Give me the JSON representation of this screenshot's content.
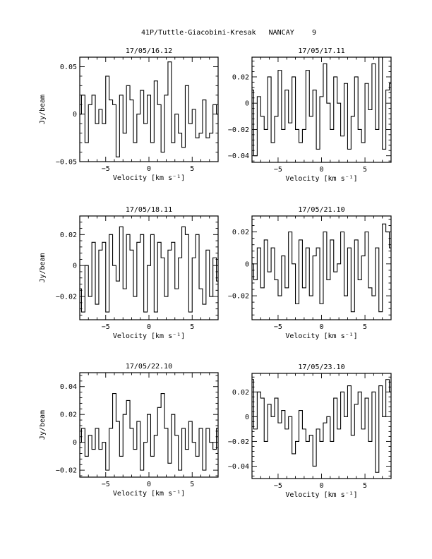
{
  "header": {
    "title": "41P/Tuttle-Giacobini-Kresak   NANCAY",
    "page_number": "9"
  },
  "chart_data": [
    {
      "type": "line",
      "title": "17/05/16.12",
      "xlabel": "Velocity [km s⁻¹]",
      "ylabel": "Jy/beam",
      "xlim": [
        -8,
        8
      ],
      "ylim": [
        -0.05,
        0.06
      ],
      "xticks": [
        -5,
        0,
        5
      ],
      "yticks": [
        -0.05,
        0,
        0.05
      ],
      "yticklabels": [
        "−0.05",
        "0",
        "0.05"
      ],
      "series": [
        {
          "x": [
            -8.0,
            -7.6,
            -7.2,
            -6.8,
            -6.4,
            -6.0,
            -5.6,
            -5.2,
            -4.8,
            -4.4,
            -4.0,
            -3.6,
            -3.2,
            -2.8,
            -2.4,
            -2.0,
            -1.6,
            -1.2,
            -0.8,
            -0.4,
            0.0,
            0.4,
            0.8,
            1.2,
            1.6,
            2.0,
            2.4,
            2.8,
            3.2,
            3.6,
            4.0,
            4.4,
            4.8,
            5.2,
            5.6,
            6.0,
            6.4,
            6.8,
            7.2,
            7.6,
            8.0
          ],
          "values": [
            0.0,
            0.02,
            -0.03,
            0.01,
            0.02,
            -0.01,
            0.005,
            -0.01,
            0.04,
            0.015,
            0.01,
            -0.045,
            0.02,
            -0.02,
            0.03,
            0.015,
            -0.03,
            0.0,
            0.025,
            -0.01,
            0.02,
            -0.03,
            0.035,
            0.01,
            -0.04,
            0.02,
            0.055,
            -0.03,
            0.0,
            -0.02,
            -0.035,
            0.03,
            -0.01,
            0.005,
            -0.025,
            -0.02,
            0.015,
            -0.025,
            -0.02,
            0.01,
            0.0
          ]
        }
      ]
    },
    {
      "type": "line",
      "title": "17/05/17.11",
      "xlabel": "Velocity [km s⁻¹]",
      "ylabel": "",
      "xlim": [
        -8,
        8
      ],
      "ylim": [
        -0.045,
        0.035
      ],
      "xticks": [
        -5,
        0,
        5
      ],
      "yticks": [
        -0.04,
        -0.02,
        0,
        0.02
      ],
      "yticklabels": [
        "−0.04",
        "−0.02",
        "0",
        "0.02"
      ],
      "series": [
        {
          "x": [
            -8.0,
            -7.6,
            -7.2,
            -6.8,
            -6.4,
            -6.0,
            -5.6,
            -5.2,
            -4.8,
            -4.4,
            -4.0,
            -3.6,
            -3.2,
            -2.8,
            -2.4,
            -2.0,
            -1.6,
            -1.2,
            -0.8,
            -0.4,
            0.0,
            0.4,
            0.8,
            1.2,
            1.6,
            2.0,
            2.4,
            2.8,
            3.2,
            3.6,
            4.0,
            4.4,
            4.8,
            5.2,
            5.6,
            6.0,
            6.4,
            6.8,
            7.2,
            7.6,
            8.0
          ],
          "values": [
            0.01,
            -0.04,
            0.005,
            -0.01,
            -0.02,
            0.02,
            -0.03,
            -0.01,
            0.025,
            -0.02,
            0.01,
            -0.015,
            0.02,
            -0.02,
            -0.03,
            -0.02,
            0.025,
            -0.01,
            0.01,
            -0.035,
            0.005,
            0.03,
            0.0,
            -0.02,
            0.02,
            0.0,
            -0.025,
            0.015,
            -0.035,
            -0.01,
            0.02,
            -0.02,
            -0.03,
            0.015,
            -0.005,
            0.03,
            -0.02,
            0.035,
            -0.035,
            0.01,
            0.015
          ]
        }
      ]
    },
    {
      "type": "line",
      "title": "17/05/18.11",
      "xlabel": "Velocity [km s⁻¹]",
      "ylabel": "Jy/beam",
      "xlim": [
        -8,
        8
      ],
      "ylim": [
        -0.035,
        0.032
      ],
      "xticks": [
        -5,
        0,
        5
      ],
      "yticks": [
        -0.02,
        0,
        0.02
      ],
      "yticklabels": [
        "−0.02",
        "0",
        "0.02"
      ],
      "series": [
        {
          "x": [
            -8.0,
            -7.6,
            -7.2,
            -6.8,
            -6.4,
            -6.0,
            -5.6,
            -5.2,
            -4.8,
            -4.4,
            -4.0,
            -3.6,
            -3.2,
            -2.8,
            -2.4,
            -2.0,
            -1.6,
            -1.2,
            -0.8,
            -0.4,
            0.0,
            0.4,
            0.8,
            1.2,
            1.6,
            2.0,
            2.4,
            2.8,
            3.2,
            3.6,
            4.0,
            4.4,
            4.8,
            5.2,
            5.6,
            6.0,
            6.4,
            6.8,
            7.2,
            7.6,
            8.0
          ],
          "values": [
            -0.015,
            -0.03,
            0.0,
            -0.02,
            0.015,
            -0.025,
            0.01,
            0.015,
            -0.03,
            0.02,
            0.0,
            -0.01,
            0.025,
            -0.015,
            0.02,
            0.01,
            -0.02,
            0.015,
            0.02,
            -0.03,
            0.0,
            0.02,
            -0.03,
            0.015,
            0.005,
            -0.02,
            0.01,
            0.015,
            -0.015,
            0.005,
            0.025,
            0.02,
            -0.03,
            0.005,
            0.02,
            -0.015,
            -0.025,
            0.01,
            -0.02,
            0.005,
            -0.01
          ]
        }
      ]
    },
    {
      "type": "line",
      "title": "17/05/21.10",
      "xlabel": "Velocity [km s⁻¹]",
      "ylabel": "",
      "xlim": [
        -8,
        8
      ],
      "ylim": [
        -0.035,
        0.03
      ],
      "xticks": [
        -5,
        0,
        5
      ],
      "yticks": [
        -0.02,
        0,
        0.02
      ],
      "yticklabels": [
        "−0.02",
        "0",
        "0.02"
      ],
      "series": [
        {
          "x": [
            -8.0,
            -7.6,
            -7.2,
            -6.8,
            -6.4,
            -6.0,
            -5.6,
            -5.2,
            -4.8,
            -4.4,
            -4.0,
            -3.6,
            -3.2,
            -2.8,
            -2.4,
            -2.0,
            -1.6,
            -1.2,
            -0.8,
            -0.4,
            0.0,
            0.4,
            0.8,
            1.2,
            1.6,
            2.0,
            2.4,
            2.8,
            3.2,
            3.6,
            4.0,
            4.4,
            4.8,
            5.2,
            5.6,
            6.0,
            6.4,
            6.8,
            7.2,
            7.6,
            8.0
          ],
          "values": [
            0.0,
            -0.01,
            0.01,
            -0.015,
            0.015,
            -0.005,
            0.01,
            -0.01,
            -0.02,
            0.005,
            -0.015,
            0.02,
            0.0,
            -0.025,
            0.015,
            -0.015,
            0.01,
            -0.02,
            0.005,
            0.01,
            -0.025,
            0.02,
            -0.01,
            0.015,
            -0.005,
            0.0,
            0.02,
            -0.02,
            0.01,
            -0.03,
            0.015,
            -0.01,
            0.005,
            0.02,
            -0.015,
            -0.02,
            0.01,
            -0.03,
            0.025,
            0.02,
            0.01
          ]
        }
      ]
    },
    {
      "type": "line",
      "title": "17/05/22.10",
      "xlabel": "Velocity [km s⁻¹]",
      "ylabel": "Jy/beam",
      "xlim": [
        -8,
        8
      ],
      "ylim": [
        -0.025,
        0.05
      ],
      "xticks": [
        -5,
        0,
        5
      ],
      "yticks": [
        -0.02,
        0,
        0.02,
        0.04
      ],
      "yticklabels": [
        "−0.02",
        "0",
        "0.02",
        "0.04"
      ],
      "series": [
        {
          "x": [
            -8.0,
            -7.6,
            -7.2,
            -6.8,
            -6.4,
            -6.0,
            -5.6,
            -5.2,
            -4.8,
            -4.4,
            -4.0,
            -3.6,
            -3.2,
            -2.8,
            -2.4,
            -2.0,
            -1.6,
            -1.2,
            -0.8,
            -0.4,
            0.0,
            0.4,
            0.8,
            1.2,
            1.6,
            2.0,
            2.4,
            2.8,
            3.2,
            3.6,
            4.0,
            4.4,
            4.8,
            5.2,
            5.6,
            6.0,
            6.4,
            6.8,
            7.2,
            7.6,
            8.0
          ],
          "values": [
            0.0,
            0.01,
            -0.01,
            0.005,
            -0.005,
            0.01,
            -0.005,
            0.0,
            -0.02,
            0.01,
            0.035,
            0.015,
            -0.01,
            0.02,
            0.03,
            0.01,
            -0.005,
            0.015,
            -0.02,
            0.0,
            0.02,
            -0.01,
            0.005,
            0.025,
            0.035,
            0.01,
            -0.015,
            0.02,
            0.005,
            -0.02,
            0.01,
            -0.005,
            0.015,
            0.0,
            -0.01,
            0.01,
            -0.02,
            0.01,
            0.0,
            -0.005,
            0.01
          ]
        }
      ]
    },
    {
      "type": "line",
      "title": "17/05/23.10",
      "xlabel": "Velocity [km s⁻¹]",
      "ylabel": "",
      "xlim": [
        -8,
        8
      ],
      "ylim": [
        -0.05,
        0.035
      ],
      "xticks": [
        -5,
        0,
        5
      ],
      "yticks": [
        -0.04,
        -0.02,
        0,
        0.02
      ],
      "yticklabels": [
        "−0.04",
        "−0.02",
        "0",
        "0.02"
      ],
      "series": [
        {
          "x": [
            -8.0,
            -7.6,
            -7.2,
            -6.8,
            -6.4,
            -6.0,
            -5.6,
            -5.2,
            -4.8,
            -4.4,
            -4.0,
            -3.6,
            -3.2,
            -2.8,
            -2.4,
            -2.0,
            -1.6,
            -1.2,
            -0.8,
            -0.4,
            0.0,
            0.4,
            0.8,
            1.2,
            1.6,
            2.0,
            2.4,
            2.8,
            3.2,
            3.6,
            4.0,
            4.4,
            4.8,
            5.2,
            5.6,
            6.0,
            6.4,
            6.8,
            7.2,
            7.6,
            8.0
          ],
          "values": [
            0.03,
            -0.01,
            0.02,
            0.015,
            -0.02,
            0.01,
            0.0,
            0.015,
            -0.005,
            0.005,
            -0.01,
            0.0,
            -0.03,
            -0.02,
            0.005,
            -0.01,
            -0.02,
            -0.015,
            -0.04,
            -0.01,
            -0.02,
            -0.005,
            0.0,
            -0.02,
            0.015,
            -0.01,
            0.02,
            0.0,
            0.025,
            -0.015,
            0.01,
            0.02,
            -0.01,
            0.015,
            -0.02,
            0.02,
            -0.045,
            0.025,
            0.0,
            0.03,
            0.02
          ]
        }
      ]
    }
  ]
}
